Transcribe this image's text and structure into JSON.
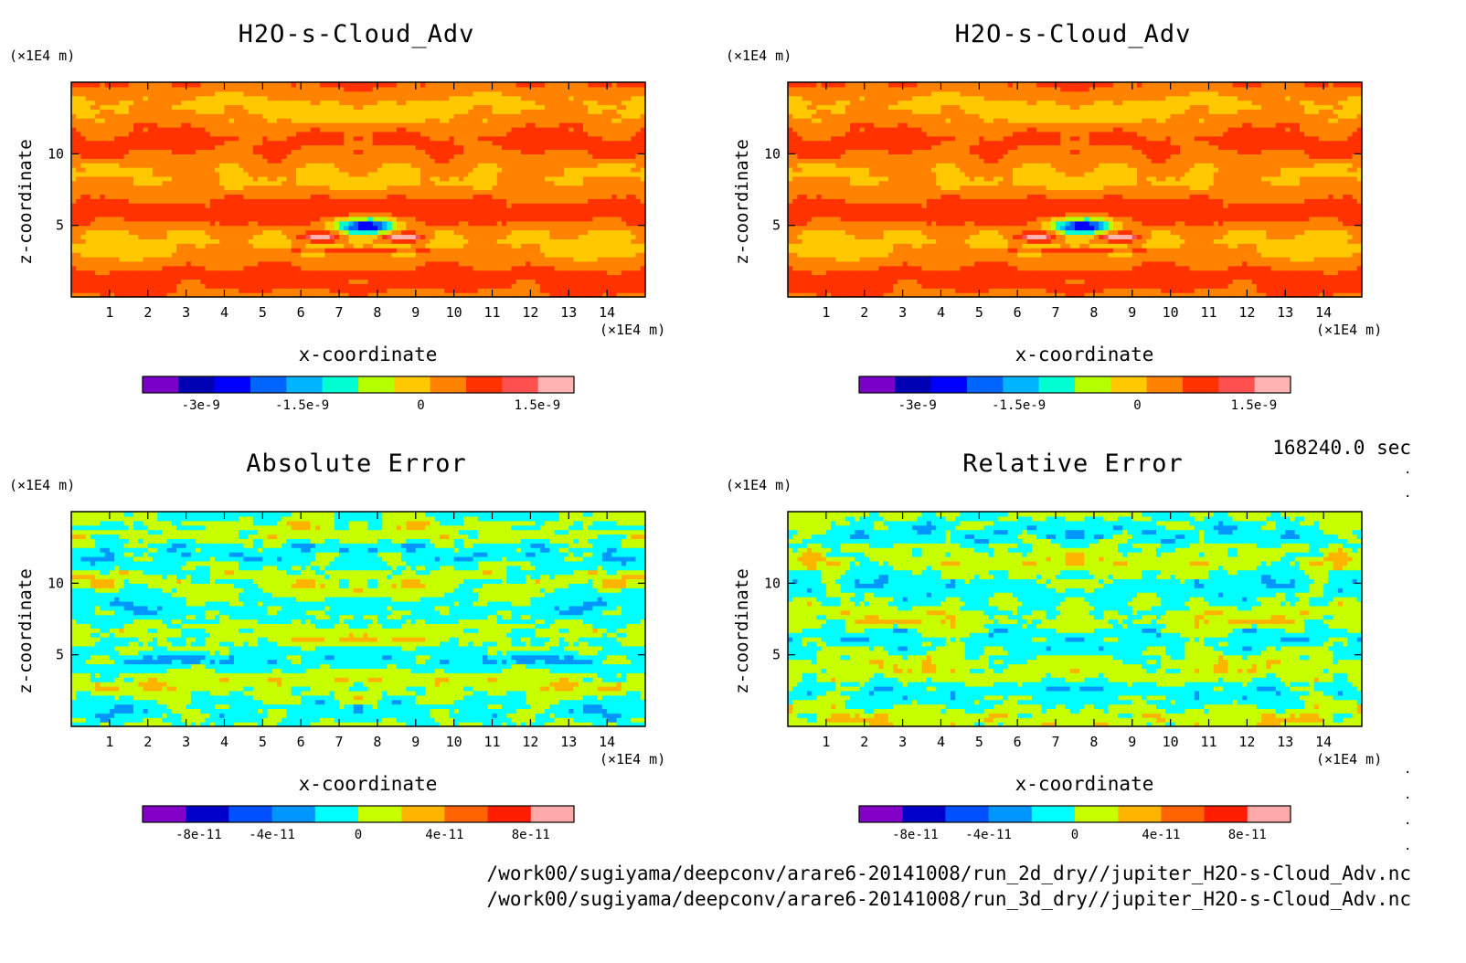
{
  "panels": [
    {
      "id": "p1",
      "title": "H2O-s-Cloud_Adv",
      "y_unit": "(×1E4 m)",
      "x_unit": "(×1E4 m)",
      "xlabel": "x-coordinate",
      "ylabel": "z-coordinate",
      "field": "main",
      "colorbar": {
        "colors": [
          "#7a00c8",
          "#0000b4",
          "#0000ff",
          "#0064ff",
          "#00b4ff",
          "#00ffd2",
          "#b4ff00",
          "#ffc800",
          "#ff8200",
          "#ff3200",
          "#ff5050",
          "#ffb4b4"
        ],
        "tick_labels": [
          "-3e-9",
          "-1.5e-9",
          "0",
          "1.5e-9"
        ]
      }
    },
    {
      "id": "p2",
      "title": "H2O-s-Cloud_Adv",
      "y_unit": "(×1E4 m)",
      "x_unit": "(×1E4 m)",
      "xlabel": "x-coordinate",
      "ylabel": "z-coordinate",
      "field": "main",
      "colorbar": {
        "colors": [
          "#7a00c8",
          "#0000b4",
          "#0000ff",
          "#0064ff",
          "#00b4ff",
          "#00ffd2",
          "#b4ff00",
          "#ffc800",
          "#ff8200",
          "#ff3200",
          "#ff5050",
          "#ffb4b4"
        ],
        "tick_labels": [
          "-3e-9",
          "-1.5e-9",
          "0",
          "1.5e-9"
        ]
      }
    },
    {
      "id": "p3",
      "title": "Absolute Error",
      "y_unit": "(×1E4 m)",
      "x_unit": "(×1E4 m)",
      "xlabel": "x-coordinate",
      "ylabel": "z-coordinate",
      "field": "abs",
      "colorbar": {
        "colors": [
          "#8200c8",
          "#0000c8",
          "#0050ff",
          "#0096ff",
          "#00ffff",
          "#c8ff00",
          "#ffb400",
          "#ff6400",
          "#ff1e00",
          "#ffaaaa"
        ],
        "tick_labels": [
          "-8e-11",
          "-4e-11",
          "0",
          "4e-11",
          "8e-11"
        ]
      }
    },
    {
      "id": "p4",
      "title": "Relative Error",
      "y_unit": "(×1E4 m)",
      "x_unit": "(×1E4 m)",
      "xlabel": "x-coordinate",
      "ylabel": "z-coordinate",
      "field": "rel",
      "colorbar": {
        "colors": [
          "#8200c8",
          "#0000c8",
          "#0050ff",
          "#0096ff",
          "#00ffff",
          "#c8ff00",
          "#ffb400",
          "#ff6400",
          "#ff1e00",
          "#ffaaaa"
        ],
        "tick_labels": [
          "-8e-11",
          "-4e-11",
          "0",
          "4e-11",
          "8e-11"
        ]
      }
    }
  ],
  "chart_data": [
    {
      "type": "heatmap",
      "title": "H2O-s-Cloud_Adv",
      "xlabel": "x-coordinate",
      "ylabel": "z-coordinate",
      "x_ticks": [
        1,
        2,
        3,
        4,
        5,
        6,
        7,
        8,
        9,
        10,
        11,
        12,
        13,
        14
      ],
      "y_ticks": [
        5,
        10
      ],
      "xlim": [
        0,
        15
      ],
      "ylim": [
        0,
        15
      ],
      "x_unit": "×1E4 m",
      "y_unit": "×1E4 m",
      "colorbar_ticks": [
        "-3e-9",
        "-1.5e-9",
        "0",
        "1.5e-9"
      ],
      "min_value_at": {
        "x": 7.7,
        "z": 5.0
      },
      "max_value_at": [
        {
          "x": 6.5,
          "z": 4.2
        },
        {
          "x": 8.7,
          "z": 4.2
        }
      ]
    },
    {
      "type": "heatmap",
      "title": "H2O-s-Cloud_Adv",
      "xlabel": "x-coordinate",
      "ylabel": "z-coordinate",
      "x_ticks": [
        1,
        2,
        3,
        4,
        5,
        6,
        7,
        8,
        9,
        10,
        11,
        12,
        13,
        14
      ],
      "y_ticks": [
        5,
        10
      ],
      "xlim": [
        0,
        15
      ],
      "ylim": [
        0,
        15
      ],
      "colorbar_ticks": [
        "-3e-9",
        "-1.5e-9",
        "0",
        "1.5e-9"
      ]
    },
    {
      "type": "heatmap",
      "title": "Absolute Error",
      "xlabel": "x-coordinate",
      "ylabel": "z-coordinate",
      "x_ticks": [
        1,
        2,
        3,
        4,
        5,
        6,
        7,
        8,
        9,
        10,
        11,
        12,
        13,
        14
      ],
      "y_ticks": [
        5,
        10
      ],
      "xlim": [
        0,
        15
      ],
      "ylim": [
        0,
        15
      ],
      "colorbar_ticks": [
        "-8e-11",
        "-4e-11",
        "0",
        "4e-11",
        "8e-11"
      ]
    },
    {
      "type": "heatmap",
      "title": "Relative Error",
      "xlabel": "x-coordinate",
      "ylabel": "z-coordinate",
      "x_ticks": [
        1,
        2,
        3,
        4,
        5,
        6,
        7,
        8,
        9,
        10,
        11,
        12,
        13,
        14
      ],
      "y_ticks": [
        5,
        10
      ],
      "xlim": [
        0,
        15
      ],
      "ylim": [
        0,
        15
      ],
      "colorbar_ticks": [
        "-8e-11",
        "-4e-11",
        "0",
        "4e-11",
        "8e-11"
      ]
    }
  ],
  "footer": {
    "time": "168240.0 sec",
    "path1": "/work00/sugiyama/deepconv/arare6-20141008/run_2d_dry//jupiter_H2O-s-Cloud_Adv.nc",
    "path2": "/work00/sugiyama/deepconv/arare6-20141008/run_3d_dry//jupiter_H2O-s-Cloud_Adv.nc"
  },
  "x_tick_labels": [
    "1",
    "2",
    "3",
    "4",
    "5",
    "6",
    "7",
    "8",
    "9",
    "10",
    "11",
    "12",
    "13",
    "14"
  ],
  "y_tick_labels": [
    "5",
    "10"
  ]
}
